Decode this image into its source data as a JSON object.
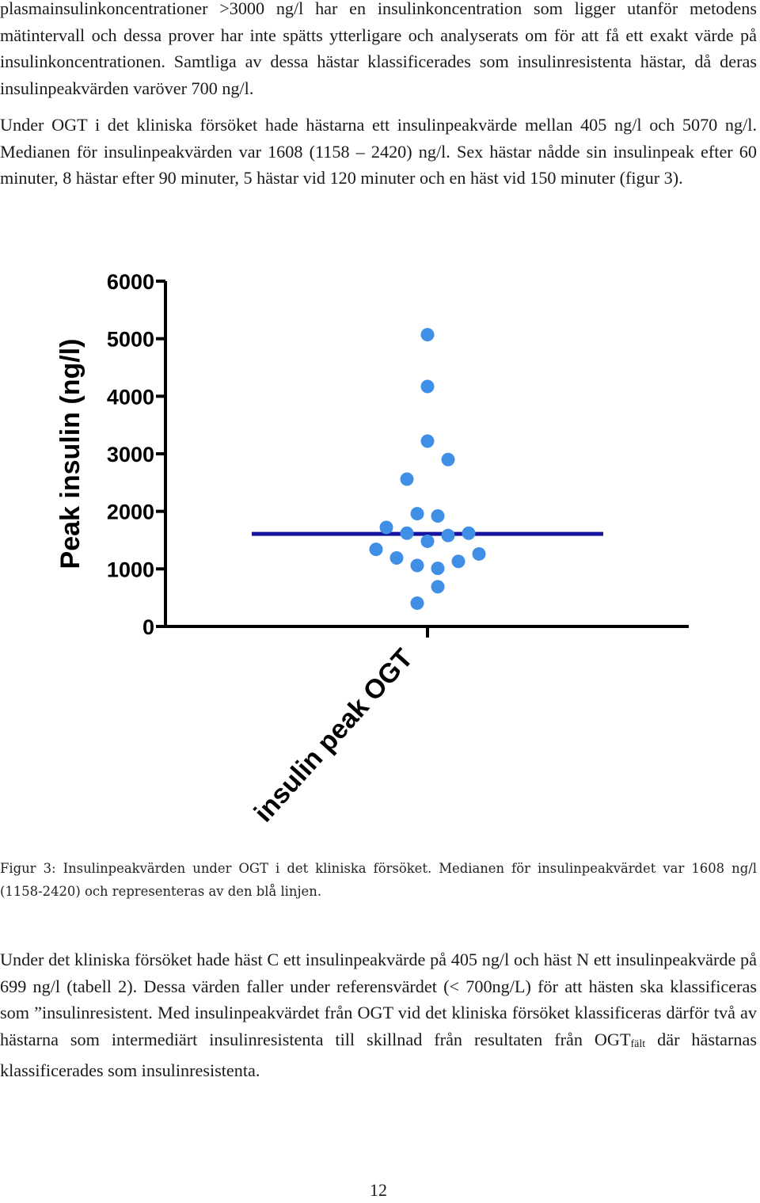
{
  "text": {
    "para_top": "plasmainsulinkoncentrationer >3000 ng/l har en insulinkoncentration som ligger utanför metodens mätintervall och dessa prover har inte spätts ytterligare och analyserats om för att få ett exakt värde på insulinkoncentrationen. Samtliga av dessa hästar klassificerades som insulinresistenta hästar, då deras insulinpeakvärden varöver 700 ng/l.",
    "para_ogt": "Under OGT i det kliniska försöket hade hästarna ett insulinpeakvärde mellan 405 ng/l och 5070 ng/l. Medianen för insulinpeakvärden var 1608 (1158 – 2420) ng/l. Sex hästar nådde sin insulinpeak efter 60 minuter, 8 hästar efter 90 minuter, 5 hästar vid 120 minuter och en häst vid 150 minuter (figur 3).",
    "caption": "Figur 3: Insulinpeakvärden under OGT i det kliniska försöket. Medianen för insulinpeakvärdet var 1608 ng/l (1158-2420) och representeras av den blå linjen.",
    "para_bottom_main": "Under det kliniska försöket hade häst C ett insulinpeakvärde på 405 ng/l och häst N ett insulinpeakvärde på 699 ng/l (tabell 2). Dessa värden faller under referensvärdet (< 700ng/L) för att hästen ska klassificeras som ”insulinresistent. Med insulinpeakvärdet från OGT vid det kliniska försöket klassificeras därför två av hästarna som intermediärt insulinresistenta till skillnad från resultaten från OGT",
    "para_bottom_sub": "fält",
    "para_bottom_end": " där hästarnas klassificerades som insulinresistenta.",
    "page_number": "12"
  },
  "chart_data": {
    "type": "scatter",
    "title": "",
    "xlabel": "",
    "ylabel": "Peak insulin (ng/l)",
    "category": "insulin peak OGT",
    "ylim": [
      0,
      6000
    ],
    "yticks": [
      0,
      1000,
      2000,
      3000,
      4000,
      5000,
      6000
    ],
    "median": 1608,
    "point_color": "#3f8fe6",
    "median_color": "#1414a0",
    "points": [
      {
        "offset": 0,
        "value": 5070
      },
      {
        "offset": 0,
        "value": 4170
      },
      {
        "offset": 0,
        "value": 3220
      },
      {
        "offset": 1,
        "value": 2900
      },
      {
        "offset": -1,
        "value": 2560
      },
      {
        "offset": -0.5,
        "value": 1960
      },
      {
        "offset": 0.5,
        "value": 1920
      },
      {
        "offset": -2,
        "value": 1720
      },
      {
        "offset": -1,
        "value": 1620
      },
      {
        "offset": 1,
        "value": 1580
      },
      {
        "offset": 2,
        "value": 1620
      },
      {
        "offset": 0,
        "value": 1480
      },
      {
        "offset": -2.5,
        "value": 1340
      },
      {
        "offset": 2.5,
        "value": 1260
      },
      {
        "offset": -1.5,
        "value": 1190
      },
      {
        "offset": 1.5,
        "value": 1130
      },
      {
        "offset": -0.5,
        "value": 1060
      },
      {
        "offset": 0.5,
        "value": 1010
      },
      {
        "offset": 0.5,
        "value": 690
      },
      {
        "offset": -0.5,
        "value": 405
      }
    ]
  }
}
